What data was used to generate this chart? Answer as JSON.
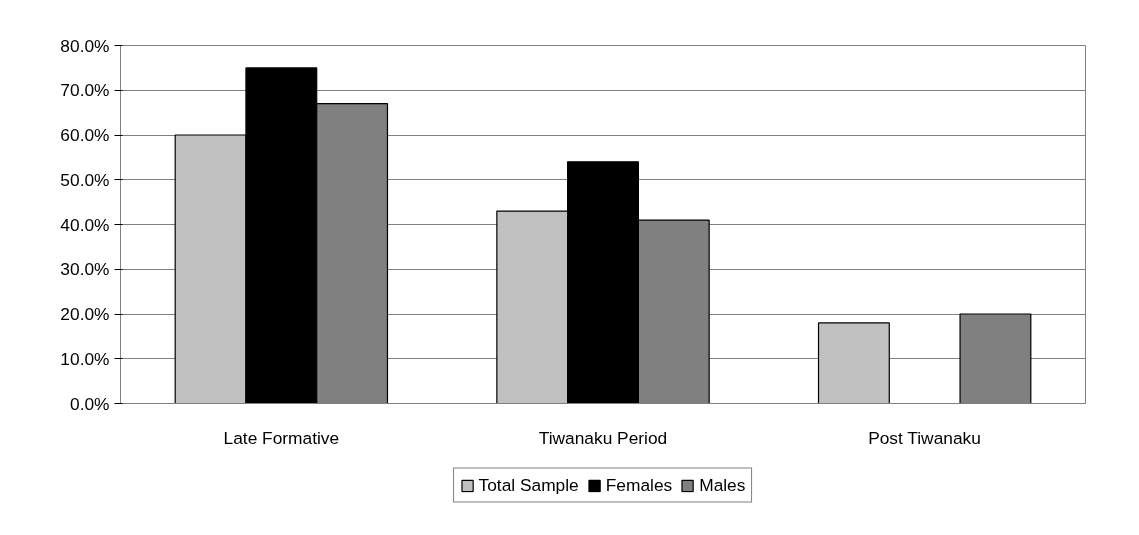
{
  "chart_data": {
    "type": "bar",
    "categories": [
      "Late Formative",
      "Tiwanaku Period",
      "Post Tiwanaku"
    ],
    "series": [
      {
        "name": "Total Sample",
        "color": "#c0c0c0",
        "values": [
          60,
          43,
          18
        ]
      },
      {
        "name": "Females",
        "color": "#000000",
        "values": [
          75,
          54,
          0
        ]
      },
      {
        "name": "Males",
        "color": "#808080",
        "values": [
          67,
          41,
          20
        ]
      }
    ],
    "ylim": [
      0,
      80
    ],
    "yticks": [
      {
        "value": 0,
        "label": "0.0%"
      },
      {
        "value": 10,
        "label": "10.0%"
      },
      {
        "value": 20,
        "label": "20.0%"
      },
      {
        "value": 30,
        "label": "30.0%"
      },
      {
        "value": 40,
        "label": "40.0%"
      },
      {
        "value": 50,
        "label": "50.0%"
      },
      {
        "value": 60,
        "label": "60.0%"
      },
      {
        "value": 70,
        "label": "70.0%"
      },
      {
        "value": 80,
        "label": "80.0%"
      }
    ],
    "grid": "y",
    "legend": "bottom"
  }
}
